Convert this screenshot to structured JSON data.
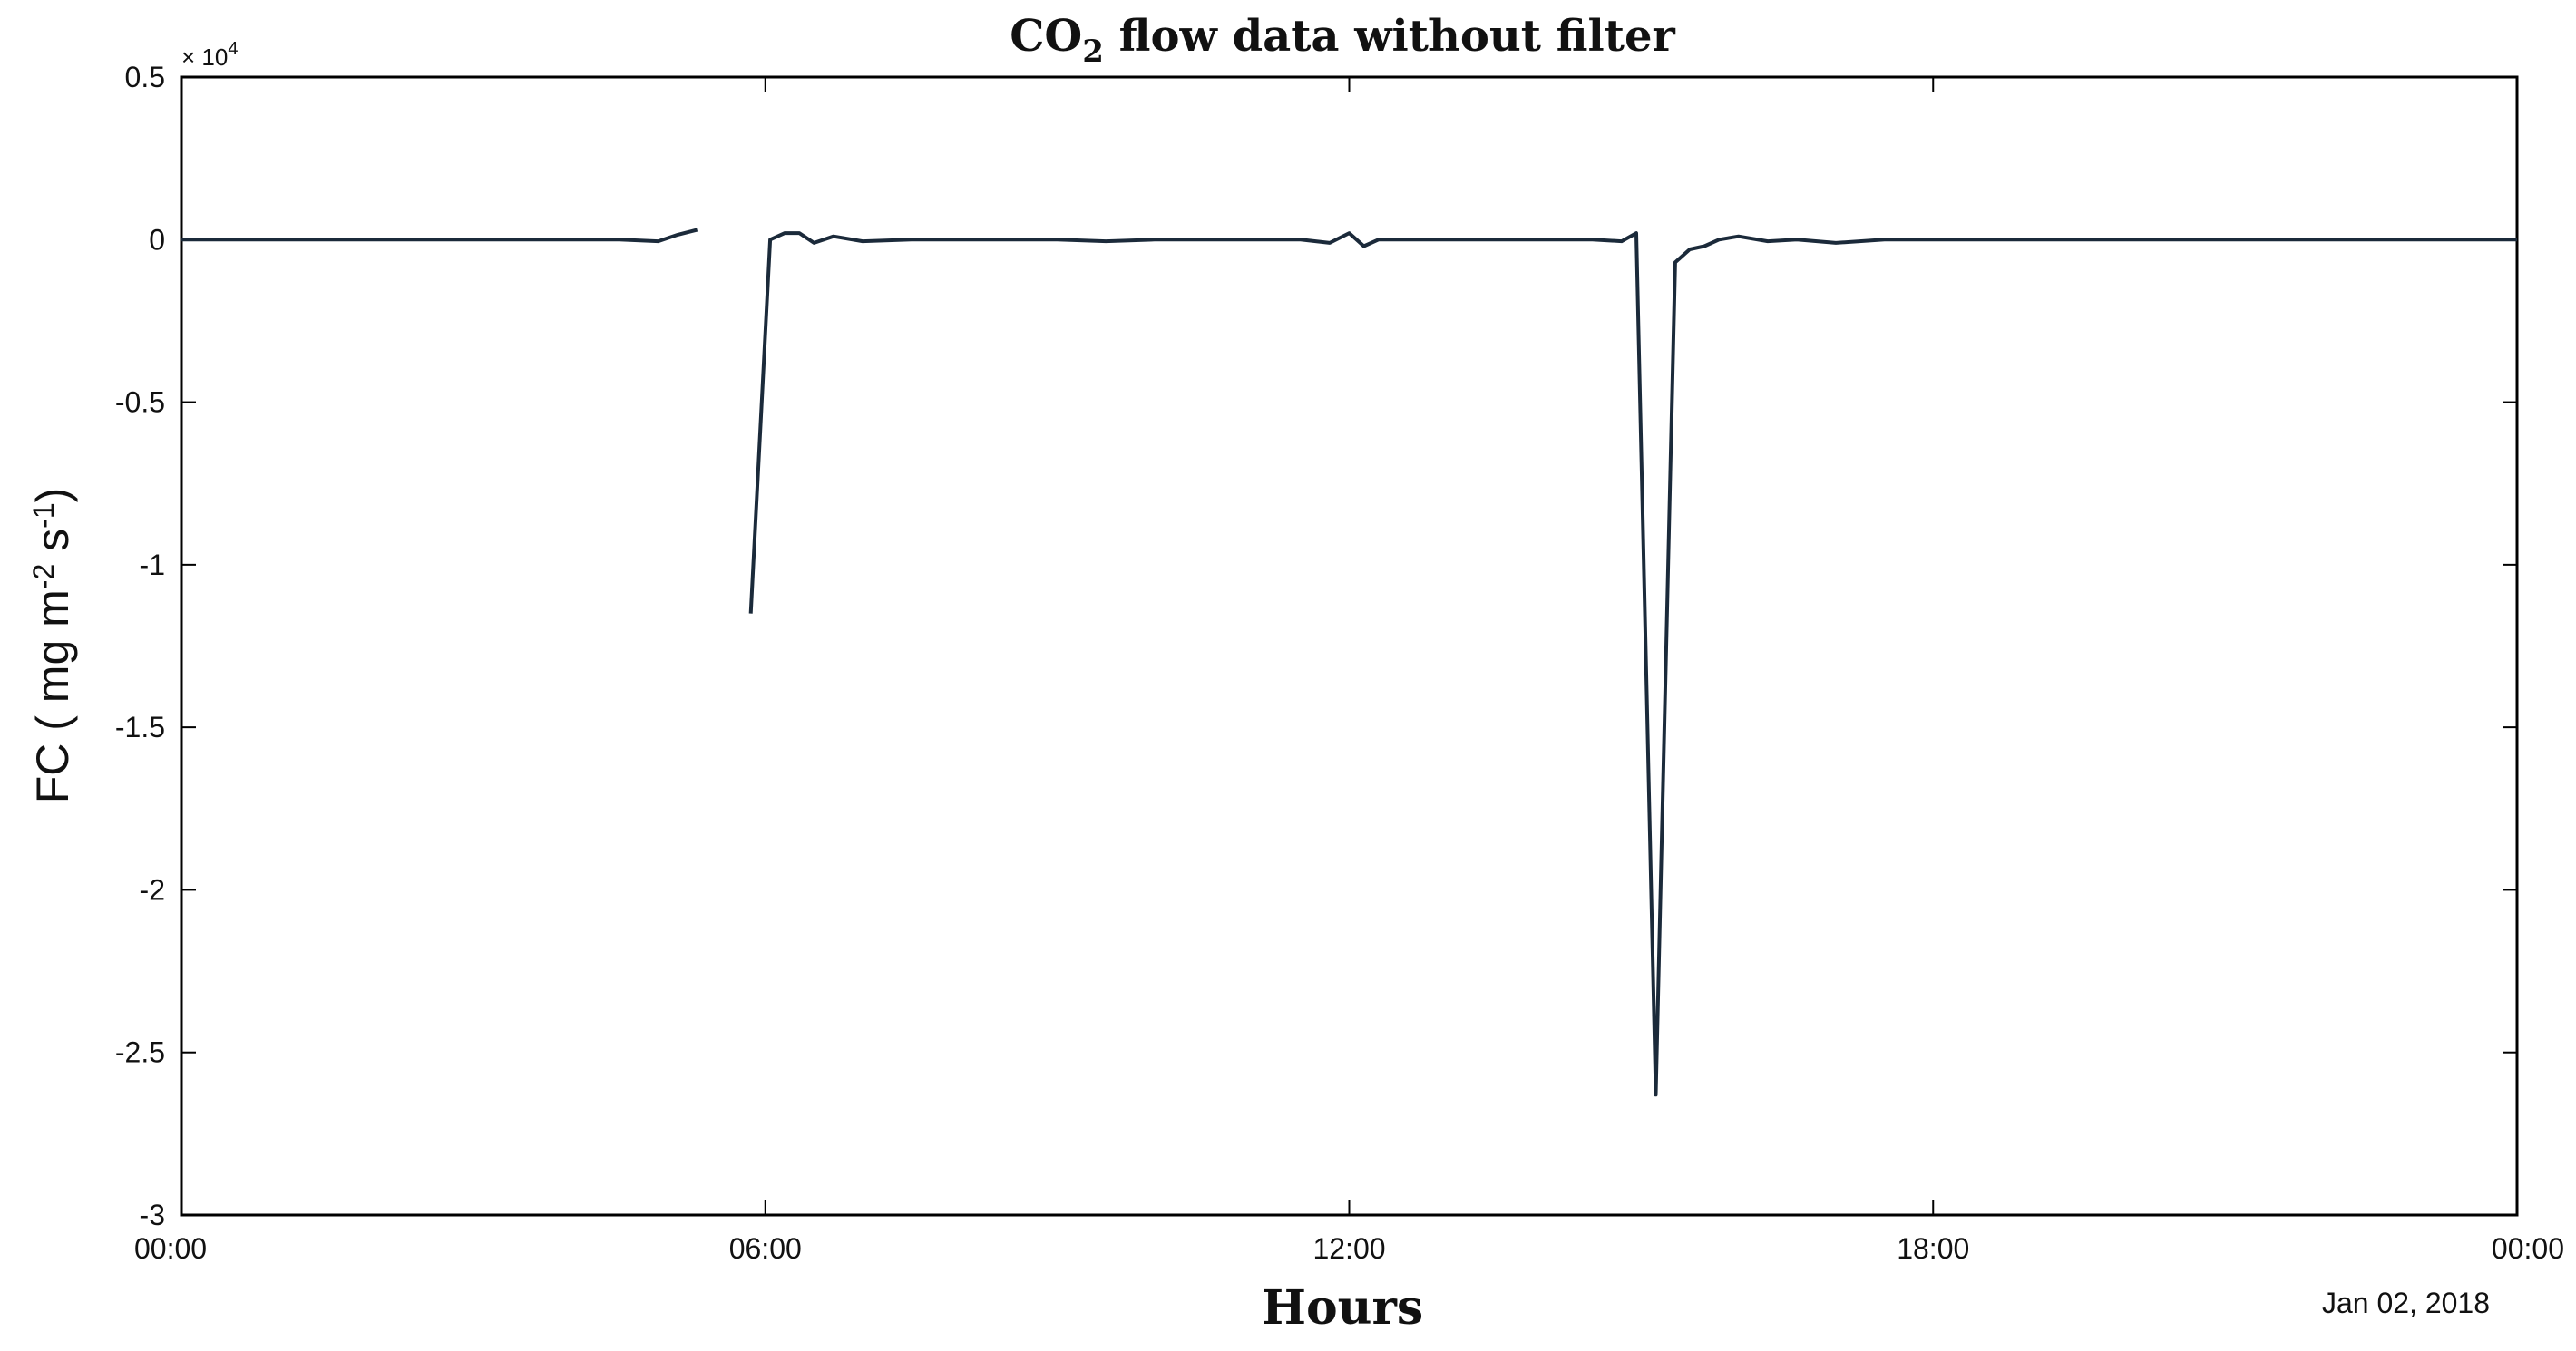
{
  "chart_data": {
    "type": "line",
    "title": {
      "prefix": "CO",
      "subscript": "2",
      "suffix": " flow data without filter"
    },
    "xlabel": "Hours",
    "ylabel": {
      "prefix": "FC ( mg m",
      "sup1": "-2",
      "mid": " s",
      "sup2": "-1",
      "suffix": ")"
    },
    "y_exponent": {
      "base": "× 10",
      "power": "4"
    },
    "date_label": "Jan 02, 2018",
    "xlim": [
      0,
      24
    ],
    "ylim": [
      -3,
      0.5
    ],
    "x_ticks": [
      {
        "value": 0,
        "label": "00:00"
      },
      {
        "value": 6,
        "label": "06:00"
      },
      {
        "value": 12,
        "label": "12:00"
      },
      {
        "value": 18,
        "label": "18:00"
      },
      {
        "value": 24,
        "label": "00:00"
      }
    ],
    "y_ticks": [
      {
        "value": 0.5,
        "label": "0.5"
      },
      {
        "value": 0,
        "label": "0"
      },
      {
        "value": -0.5,
        "label": "-0.5"
      },
      {
        "value": -1,
        "label": "-1"
      },
      {
        "value": -1.5,
        "label": "-1.5"
      },
      {
        "value": -2,
        "label": "-2"
      },
      {
        "value": -2.5,
        "label": "-2.5"
      },
      {
        "value": -3,
        "label": "-3"
      }
    ],
    "grid": false,
    "line_color": "#1b2a3a",
    "series": [
      {
        "segments": [
          [
            [
              0.0,
              0.0
            ],
            [
              0.5,
              0.0
            ],
            [
              1.0,
              0.0
            ],
            [
              1.5,
              0.0
            ],
            [
              2.0,
              0.0
            ],
            [
              2.5,
              0.0
            ],
            [
              3.0,
              0.0
            ],
            [
              3.5,
              0.0
            ],
            [
              4.0,
              0.0
            ],
            [
              4.5,
              0.0
            ],
            [
              4.9,
              -0.005
            ],
            [
              5.1,
              0.015
            ],
            [
              5.3,
              0.03
            ]
          ],
          [
            [
              5.85,
              -1.15
            ],
            [
              6.05,
              0.0
            ],
            [
              6.2,
              0.02
            ],
            [
              6.35,
              0.02
            ],
            [
              6.5,
              -0.01
            ],
            [
              6.7,
              0.01
            ],
            [
              7.0,
              -0.005
            ],
            [
              7.5,
              0.0
            ],
            [
              8.0,
              0.0
            ],
            [
              8.5,
              0.0
            ],
            [
              9.0,
              0.0
            ],
            [
              9.5,
              -0.005
            ],
            [
              10.0,
              0.0
            ],
            [
              10.5,
              0.0
            ],
            [
              11.0,
              0.0
            ],
            [
              11.5,
              0.0
            ],
            [
              11.8,
              -0.01
            ],
            [
              12.0,
              0.02
            ],
            [
              12.15,
              -0.02
            ],
            [
              12.3,
              0.0
            ],
            [
              12.6,
              0.0
            ],
            [
              13.0,
              0.0
            ],
            [
              13.5,
              0.0
            ],
            [
              14.0,
              0.0
            ],
            [
              14.5,
              0.0
            ],
            [
              14.8,
              -0.005
            ],
            [
              14.95,
              0.02
            ],
            [
              15.15,
              -2.63
            ],
            [
              15.35,
              -0.07
            ],
            [
              15.5,
              -0.03
            ],
            [
              15.65,
              -0.02
            ],
            [
              15.8,
              0.0
            ],
            [
              16.0,
              0.01
            ],
            [
              16.3,
              -0.005
            ],
            [
              16.6,
              0.0
            ],
            [
              17.0,
              -0.01
            ],
            [
              17.5,
              0.0
            ],
            [
              18.0,
              0.0
            ],
            [
              18.5,
              0.0
            ],
            [
              19.0,
              0.0
            ],
            [
              19.5,
              0.0
            ],
            [
              20.0,
              0.0
            ],
            [
              20.5,
              0.0
            ],
            [
              21.0,
              0.0
            ],
            [
              21.5,
              0.0
            ],
            [
              22.0,
              0.0
            ],
            [
              22.5,
              0.0
            ],
            [
              23.0,
              0.0
            ],
            [
              23.5,
              0.0
            ],
            [
              24.0,
              0.0
            ]
          ]
        ]
      }
    ]
  }
}
